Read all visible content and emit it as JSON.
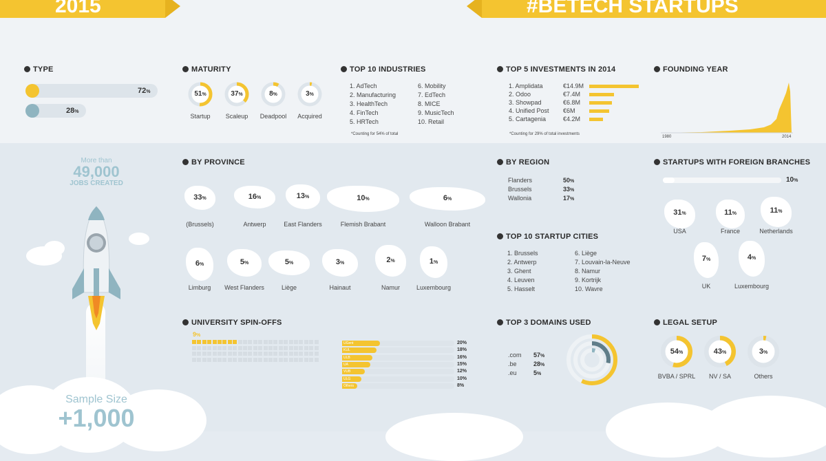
{
  "header": {
    "year": "2015",
    "hashtag": "#BETECH STARTUPS"
  },
  "type": {
    "title": "TYPE",
    "rows": [
      {
        "value": "72",
        "unit": "%"
      },
      {
        "value": "28",
        "unit": "%"
      }
    ]
  },
  "maturity": {
    "title": "MATURITY",
    "items": [
      {
        "value": "51",
        "unit": "%",
        "label": "Startup",
        "fraction": 0.51
      },
      {
        "value": "37",
        "unit": "%",
        "label": "Scaleup",
        "fraction": 0.37
      },
      {
        "value": "8",
        "unit": "%",
        "label": "Deadpool",
        "fraction": 0.08
      },
      {
        "value": "3",
        "unit": "%",
        "label": "Acquired",
        "fraction": 0.03
      }
    ]
  },
  "industries": {
    "title": "TOP 10 INDUSTRIES",
    "col1": [
      "1. AdTech",
      "2. Manufacturing",
      "3. HealthTech",
      "4. FinTech",
      "5. HRTech"
    ],
    "col2": [
      "6. Mobility",
      "7. EdTech",
      "8. MICE",
      "9. MusicTech",
      "10. Retail"
    ],
    "note": "*Counting for 54% of total"
  },
  "investments": {
    "title": "TOP 5 INVESTMENTS IN 2014",
    "items": [
      {
        "name": "1. Amplidata",
        "amount": "€14.9M",
        "value": 14.9
      },
      {
        "name": "2. Odoo",
        "amount": "€7.4M",
        "value": 7.4
      },
      {
        "name": "3. Showpad",
        "amount": "€6.8M",
        "value": 6.8
      },
      {
        "name": "4. Unified Post",
        "amount": "€6M",
        "value": 6
      },
      {
        "name": "5. Cartagenia",
        "amount": "€4.2M",
        "value": 4.2
      }
    ],
    "note": "*Counting for 29% of total investments"
  },
  "founding": {
    "title": "FOUNDING YEAR",
    "x_start": "1980",
    "x_end": "2014"
  },
  "jobs": {
    "prefix": "More than",
    "number": "49,000",
    "suffix": "JOBS CREATED"
  },
  "sample": {
    "label": "Sample Size",
    "value": "+1,000"
  },
  "province": {
    "title": "BY PROVINCE",
    "items": [
      {
        "value": "33",
        "unit": "%",
        "label": "(Brussels)"
      },
      {
        "value": "16",
        "unit": "%",
        "label": "Antwerp"
      },
      {
        "value": "13",
        "unit": "%",
        "label": "East Flanders"
      },
      {
        "value": "10",
        "unit": "%",
        "label": "Flemish Brabant"
      },
      {
        "value": "6",
        "unit": "%",
        "label": "Walloon Brabant"
      },
      {
        "value": "6",
        "unit": "%",
        "label": "Limburg"
      },
      {
        "value": "5",
        "unit": "%",
        "label": "West Flanders"
      },
      {
        "value": "5",
        "unit": "%",
        "label": "Liège"
      },
      {
        "value": "3",
        "unit": "%",
        "label": "Hainaut"
      },
      {
        "value": "2",
        "unit": "%",
        "label": "Namur"
      },
      {
        "value": "1",
        "unit": "%",
        "label": "Luxembourg"
      }
    ]
  },
  "region": {
    "title": "BY REGION",
    "items": [
      {
        "label": "Flanders",
        "value": "50",
        "unit": "%"
      },
      {
        "label": "Brussels",
        "value": "33",
        "unit": "%"
      },
      {
        "label": "Wallonia",
        "value": "17",
        "unit": "%"
      }
    ]
  },
  "cities": {
    "title": "TOP 10 STARTUP CITIES",
    "col1": [
      "1. Brussels",
      "2. Antwerp",
      "3. Ghent",
      "4. Leuven",
      "5. Hasselt"
    ],
    "col2": [
      "6. Liège",
      "7. Louvain-la-Neuve",
      "8. Namur",
      "9. Kortrijk",
      "10. Wavre"
    ]
  },
  "foreign": {
    "title": "STARTUPS WITH FOREIGN BRANCHES",
    "overall": "10",
    "overall_unit": "%",
    "overall_fraction": 0.1,
    "items": [
      {
        "value": "31",
        "unit": "%",
        "label": "USA"
      },
      {
        "value": "11",
        "unit": "%",
        "label": "France"
      },
      {
        "value": "11",
        "unit": "%",
        "label": "Netherlands"
      },
      {
        "value": "7",
        "unit": "%",
        "label": "UK"
      },
      {
        "value": "4",
        "unit": "%",
        "label": "Luxembourg"
      }
    ]
  },
  "spinoffs": {
    "title": "UNIVERSITY SPIN-OFFS",
    "overall": "9",
    "overall_unit": "%",
    "overall_fraction": 0.09,
    "items": [
      {
        "label": "UGent",
        "value": "20",
        "unit": "%"
      },
      {
        "label": "KUL",
        "value": "18",
        "unit": "%"
      },
      {
        "label": "ULB",
        "value": "16",
        "unit": "%"
      },
      {
        "label": "UA",
        "value": "15",
        "unit": "%"
      },
      {
        "label": "VUB",
        "value": "12",
        "unit": "%"
      },
      {
        "label": "ULG",
        "value": "10",
        "unit": "%"
      },
      {
        "label": "Others",
        "value": "8",
        "unit": "%"
      }
    ]
  },
  "domains": {
    "title": "TOP 3 DOMAINS USED",
    "items": [
      {
        "label": ".com",
        "value": "57",
        "unit": "%",
        "fraction": 0.57
      },
      {
        "label": ".be",
        "value": "28",
        "unit": "%",
        "fraction": 0.28
      },
      {
        "label": ".eu",
        "value": "5",
        "unit": "%",
        "fraction": 0.05
      }
    ]
  },
  "legal": {
    "title": "LEGAL SETUP",
    "items": [
      {
        "value": "54",
        "unit": "%",
        "label": "BVBA / SPRL",
        "fraction": 0.54
      },
      {
        "value": "43",
        "unit": "%",
        "label": "NV / SA",
        "fraction": 0.43
      },
      {
        "value": "3",
        "unit": "%",
        "label": "Others",
        "fraction": 0.03
      }
    ]
  },
  "colors": {
    "accent": "#f4c430",
    "dark": "#2b2b2b",
    "track": "#dde4ea",
    "teal": "#8fb4c0"
  }
}
